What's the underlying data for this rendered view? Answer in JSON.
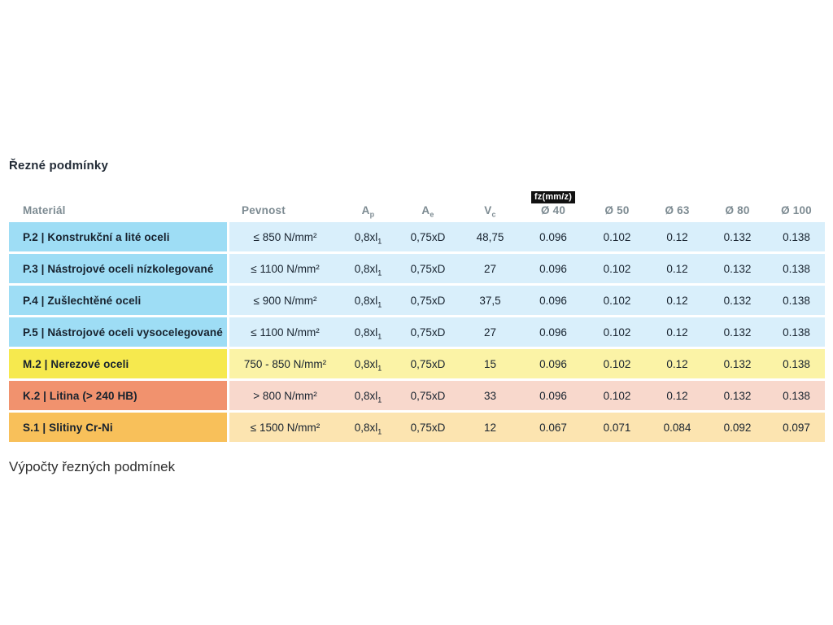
{
  "page": {
    "title": "Řezné podmínky",
    "footer": "Výpočty řezných podmínek"
  },
  "table": {
    "header": {
      "material": "Materiál",
      "pevnost": "Pevnost",
      "ap_base": "A",
      "ap_sub": "p",
      "ae_base": "A",
      "ae_sub": "e",
      "vc_base": "V",
      "vc_sub": "c",
      "fz_badge": "fz(mm/z)",
      "d40": "Ø 40",
      "d50": "Ø 50",
      "d63": "Ø 63",
      "d80": "Ø 80",
      "d100": "Ø 100"
    },
    "rows": [
      {
        "material": "P.2 | Konstrukční a lité oceli",
        "pevnost": "≤ 850 N/mm²",
        "ap_base": "0,8xl",
        "ap_sub": "1",
        "ae": "0,75xD",
        "vc": "48,75",
        "d40": "0.096",
        "d50": "0.102",
        "d63": "0.12",
        "d80": "0.132",
        "d100": "0.138",
        "color": "blue"
      },
      {
        "material": "P.3 | Nástrojové oceli nízkolegované",
        "pevnost": "≤ 1100 N/mm²",
        "ap_base": "0,8xl",
        "ap_sub": "1",
        "ae": "0,75xD",
        "vc": "27",
        "d40": "0.096",
        "d50": "0.102",
        "d63": "0.12",
        "d80": "0.132",
        "d100": "0.138",
        "color": "blue"
      },
      {
        "material": "P.4 | Zušlechtěné oceli",
        "pevnost": "≤ 900 N/mm²",
        "ap_base": "0,8xl",
        "ap_sub": "1",
        "ae": "0,75xD",
        "vc": "37,5",
        "d40": "0.096",
        "d50": "0.102",
        "d63": "0.12",
        "d80": "0.132",
        "d100": "0.138",
        "color": "blue"
      },
      {
        "material": "P.5 | Nástrojové oceli vysocelegované",
        "pevnost": "≤ 1100 N/mm²",
        "ap_base": "0,8xl",
        "ap_sub": "1",
        "ae": "0,75xD",
        "vc": "27",
        "d40": "0.096",
        "d50": "0.102",
        "d63": "0.12",
        "d80": "0.132",
        "d100": "0.138",
        "color": "blue"
      },
      {
        "material": "M.2 | Nerezové oceli",
        "pevnost": "750 - 850 N/mm²",
        "ap_base": "0,8xl",
        "ap_sub": "1",
        "ae": "0,75xD",
        "vc": "15",
        "d40": "0.096",
        "d50": "0.102",
        "d63": "0.12",
        "d80": "0.132",
        "d100": "0.138",
        "color": "yellow"
      },
      {
        "material": "K.2 | Litina (> 240 HB)",
        "pevnost": "> 800 N/mm²",
        "ap_base": "0,8xl",
        "ap_sub": "1",
        "ae": "0,75xD",
        "vc": "33",
        "d40": "0.096",
        "d50": "0.102",
        "d63": "0.12",
        "d80": "0.132",
        "d100": "0.138",
        "color": "salmon"
      },
      {
        "material": "S.1 | Slitiny Cr-Ni",
        "pevnost": "≤ 1500 N/mm²",
        "ap_base": "0,8xl",
        "ap_sub": "1",
        "ae": "0,75xD",
        "vc": "12",
        "d40": "0.067",
        "d50": "0.071",
        "d63": "0.084",
        "d80": "0.092",
        "d100": "0.097",
        "color": "orange"
      }
    ],
    "palette": {
      "steel_label": "#9eddf5",
      "steel_cell": "#d9effb",
      "stainless_label": "#f6e94e",
      "stainless_cell": "#fbf3a6",
      "cast_iron_label": "#f1926e",
      "cast_iron_cell": "#f8d8cc",
      "alloy_label": "#f8c05a",
      "alloy_cell": "#fce4b0",
      "badge_bg": "#111111",
      "badge_text": "#ffffff",
      "header_text": "#7d8b92",
      "body_text": "#17222e"
    }
  }
}
